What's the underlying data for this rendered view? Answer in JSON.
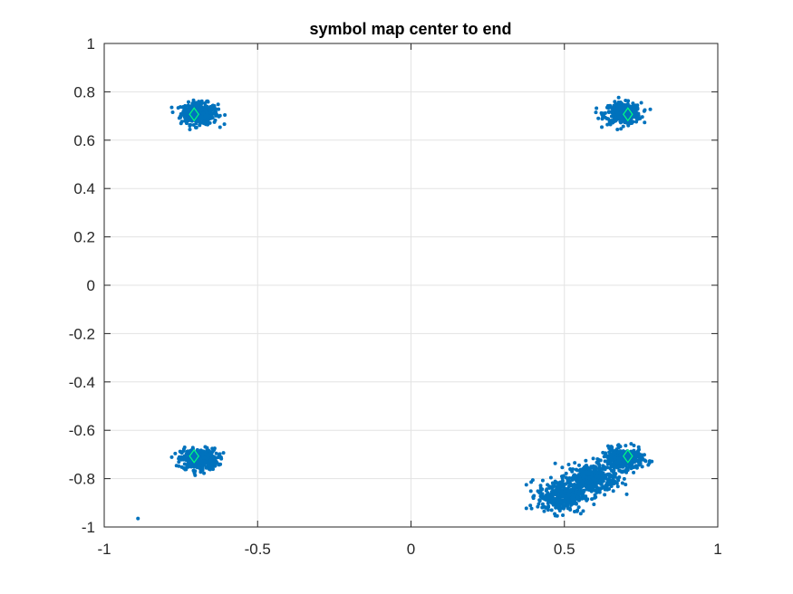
{
  "chart_data": {
    "type": "scatter",
    "title": "symbol map center to end",
    "xlabel": "",
    "ylabel": "",
    "xlim": [
      -1,
      1
    ],
    "ylim": [
      -1,
      1
    ],
    "xticks": [
      -1,
      -0.5,
      0,
      0.5,
      1
    ],
    "xtick_labels": [
      "-1",
      "-0.5",
      "0",
      "0.5",
      "1"
    ],
    "yticks": [
      1,
      0.8,
      0.6,
      0.4,
      0.2,
      0,
      -0.2,
      -0.4,
      -0.6,
      -0.8,
      -1
    ],
    "ytick_labels": [
      "1",
      "0.8",
      "0.6",
      "0.4",
      "0.2",
      "0",
      "-0.2",
      "-0.4",
      "-0.6",
      "-0.8",
      "-1"
    ],
    "grid": true,
    "series": [
      {
        "marker": "dot",
        "color": "#0072BD",
        "clusters": [
          {
            "center": [
              -0.69,
              0.71
            ],
            "spread": [
              0.03,
              0.022
            ]
          },
          {
            "center": [
              0.69,
              0.71
            ],
            "spread": [
              0.03,
              0.022
            ]
          },
          {
            "center": [
              -0.69,
              -0.72
            ],
            "spread": [
              0.03,
              0.022
            ]
          },
          {
            "center": [
              0.69,
              -0.72
            ],
            "spread": [
              0.032,
              0.022
            ]
          },
          {
            "center": [
              0.49,
              -0.87
            ],
            "spread": [
              0.038,
              0.035
            ]
          },
          {
            "center": [
              0.59,
              -0.8
            ],
            "spread": [
              0.04,
              0.03
            ]
          }
        ],
        "outliers": [
          [
            -0.89,
            -0.965
          ]
        ]
      },
      {
        "marker": "diamond",
        "color": "#00FF7F",
        "points": [
          [
            -0.707,
            0.707
          ],
          [
            0.707,
            0.707
          ],
          [
            -0.707,
            -0.707
          ],
          [
            0.707,
            -0.707
          ]
        ]
      }
    ]
  }
}
